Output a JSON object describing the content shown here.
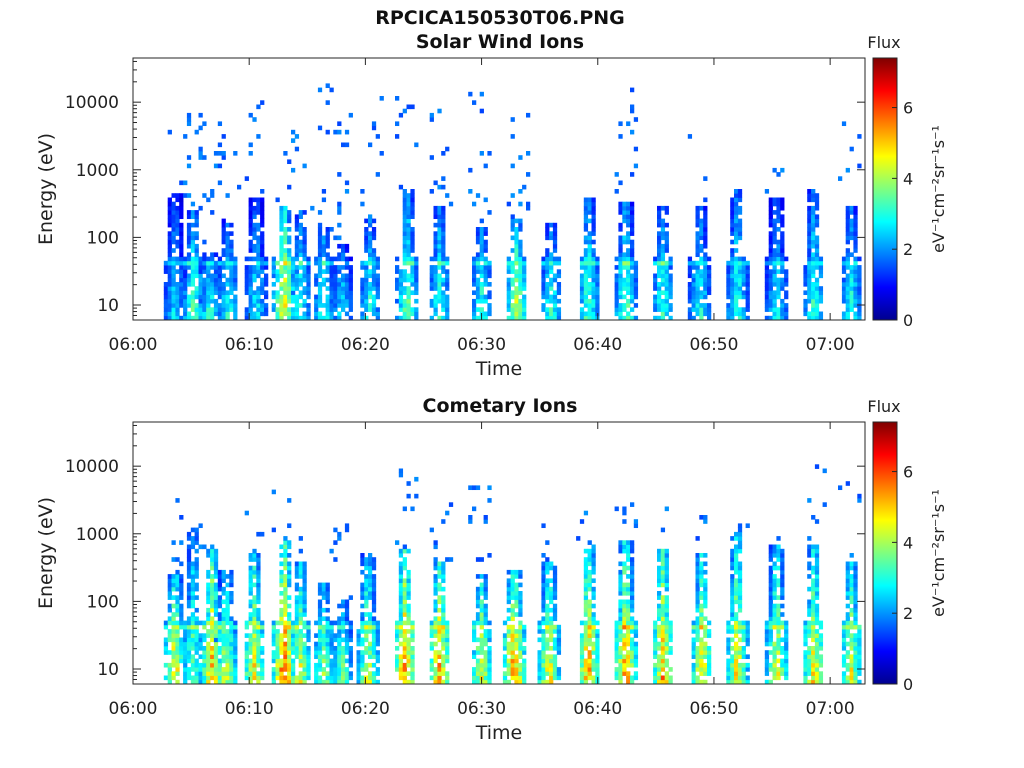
{
  "figure_title": "RPCICA150530T06.PNG",
  "chart_data": [
    {
      "type": "heatmap",
      "title": "Solar Wind Ions",
      "xlabel": "Time",
      "ylabel": "Energy (eV)",
      "x_ticks": [
        "06:00",
        "06:10",
        "06:20",
        "06:30",
        "06:40",
        "06:50",
        "07:00"
      ],
      "x_tick_minutes": [
        0,
        10,
        20,
        30,
        40,
        50,
        60
      ],
      "xlim_minutes": [
        0,
        63
      ],
      "y_scale": "log",
      "y_ticks": [
        "10",
        "100",
        "1000",
        "10000"
      ],
      "y_tick_values": [
        10,
        100,
        1000,
        10000
      ],
      "ylim": [
        6,
        45000
      ],
      "colorbar": {
        "label": "Flux",
        "unit": "eV⁻¹cm⁻²sr⁻¹s⁻¹",
        "ticks": [
          0,
          2,
          4,
          6
        ],
        "range": [
          0,
          7.4
        ],
        "colormap": "jet"
      },
      "bursts": [
        {
          "t": 3.6,
          "emax": 450,
          "fmax": 2.8,
          "hiscatter": 3000
        },
        {
          "t": 5.2,
          "emax": 250,
          "fmax": 3.6,
          "hiscatter": 7000
        },
        {
          "t": 6.6,
          "emax": 60,
          "fmax": 3.4,
          "hiscatter": 6000
        },
        {
          "t": 8.2,
          "emax": 200,
          "fmax": 3.2,
          "hiscatter": 2500
        },
        {
          "t": 10.6,
          "emax": 400,
          "fmax": 3.0,
          "hiscatter": 10000
        },
        {
          "t": 13.0,
          "emax": 300,
          "fmax": 5.0,
          "hiscatter": 3000
        },
        {
          "t": 14.4,
          "emax": 250,
          "fmax": 3.2,
          "hiscatter": 4000
        },
        {
          "t": 16.4,
          "emax": 150,
          "fmax": 3.2,
          "hiscatter": 15000
        },
        {
          "t": 18.0,
          "emax": 80,
          "fmax": 2.9,
          "hiscatter": 7000
        },
        {
          "t": 20.4,
          "emax": 200,
          "fmax": 3.2,
          "hiscatter": 15000
        },
        {
          "t": 23.6,
          "emax": 500,
          "fmax": 3.8,
          "hiscatter": 10000
        },
        {
          "t": 26.4,
          "emax": 300,
          "fmax": 3.4,
          "hiscatter": 8000
        },
        {
          "t": 30.0,
          "emax": 150,
          "fmax": 3.4,
          "hiscatter": 13000
        },
        {
          "t": 33.0,
          "emax": 200,
          "fmax": 4.4,
          "hiscatter": 6000
        },
        {
          "t": 36.0,
          "emax": 160,
          "fmax": 3.4,
          "hiscatter": 0
        },
        {
          "t": 39.2,
          "emax": 400,
          "fmax": 3.6,
          "hiscatter": 0
        },
        {
          "t": 42.4,
          "emax": 350,
          "fmax": 3.8,
          "hiscatter": 12000
        },
        {
          "t": 45.6,
          "emax": 300,
          "fmax": 3.4,
          "hiscatter": 0
        },
        {
          "t": 48.8,
          "emax": 300,
          "fmax": 3.2,
          "hiscatter": 3000
        },
        {
          "t": 52.0,
          "emax": 500,
          "fmax": 3.4,
          "hiscatter": 0
        },
        {
          "t": 55.4,
          "emax": 400,
          "fmax": 3.0,
          "hiscatter": 800
        },
        {
          "t": 58.6,
          "emax": 500,
          "fmax": 3.4,
          "hiscatter": 0
        },
        {
          "t": 61.8,
          "emax": 300,
          "fmax": 3.2,
          "hiscatter": 4000
        }
      ]
    },
    {
      "type": "heatmap",
      "title": "Cometary Ions",
      "xlabel": "Time",
      "ylabel": "Energy (eV)",
      "x_ticks": [
        "06:00",
        "06:10",
        "06:20",
        "06:30",
        "06:40",
        "06:50",
        "07:00"
      ],
      "x_tick_minutes": [
        0,
        10,
        20,
        30,
        40,
        50,
        60
      ],
      "xlim_minutes": [
        0,
        63
      ],
      "y_scale": "log",
      "y_ticks": [
        "10",
        "100",
        "1000",
        "10000"
      ],
      "y_tick_values": [
        10,
        100,
        1000,
        10000
      ],
      "ylim": [
        6,
        45000
      ],
      "colorbar": {
        "label": "Flux",
        "unit": "eV⁻¹cm⁻²sr⁻¹s⁻¹",
        "ticks": [
          0,
          2,
          4,
          6
        ],
        "range": [
          0,
          7.4
        ],
        "colormap": "jet"
      },
      "bursts": [
        {
          "t": 3.6,
          "emax": 250,
          "fmax": 5.2,
          "hiscatter": 3500
        },
        {
          "t": 5.2,
          "emax": 1200,
          "fmax": 3.8,
          "hiscatter": 1500
        },
        {
          "t": 6.8,
          "emax": 600,
          "fmax": 5.4,
          "hiscatter": 1000
        },
        {
          "t": 8.0,
          "emax": 300,
          "fmax": 4.6,
          "hiscatter": 0
        },
        {
          "t": 10.4,
          "emax": 500,
          "fmax": 5.0,
          "hiscatter": 2500
        },
        {
          "t": 13.0,
          "emax": 800,
          "fmax": 6.2,
          "hiscatter": 3500
        },
        {
          "t": 14.4,
          "emax": 400,
          "fmax": 4.6,
          "hiscatter": 1500
        },
        {
          "t": 16.4,
          "emax": 200,
          "fmax": 4.2,
          "hiscatter": 0
        },
        {
          "t": 18.0,
          "emax": 100,
          "fmax": 4.0,
          "hiscatter": 1500
        },
        {
          "t": 20.2,
          "emax": 500,
          "fmax": 4.6,
          "hiscatter": 0
        },
        {
          "t": 23.4,
          "emax": 600,
          "fmax": 5.8,
          "hiscatter": 11000
        },
        {
          "t": 26.4,
          "emax": 400,
          "fmax": 5.6,
          "hiscatter": 5000
        },
        {
          "t": 30.0,
          "emax": 250,
          "fmax": 4.8,
          "hiscatter": 4000
        },
        {
          "t": 32.8,
          "emax": 300,
          "fmax": 6.0,
          "hiscatter": 0
        },
        {
          "t": 35.8,
          "emax": 400,
          "fmax": 5.0,
          "hiscatter": 1200
        },
        {
          "t": 39.2,
          "emax": 700,
          "fmax": 5.6,
          "hiscatter": 2000
        },
        {
          "t": 42.4,
          "emax": 800,
          "fmax": 5.6,
          "hiscatter": 5500
        },
        {
          "t": 45.6,
          "emax": 600,
          "fmax": 5.4,
          "hiscatter": 5000
        },
        {
          "t": 49.0,
          "emax": 500,
          "fmax": 5.2,
          "hiscatter": 1500
        },
        {
          "t": 52.0,
          "emax": 1000,
          "fmax": 5.0,
          "hiscatter": 1500
        },
        {
          "t": 55.4,
          "emax": 700,
          "fmax": 4.8,
          "hiscatter": 1500
        },
        {
          "t": 58.6,
          "emax": 700,
          "fmax": 5.0,
          "hiscatter": 11000
        },
        {
          "t": 61.8,
          "emax": 400,
          "fmax": 4.8,
          "hiscatter": 4500
        }
      ]
    }
  ]
}
